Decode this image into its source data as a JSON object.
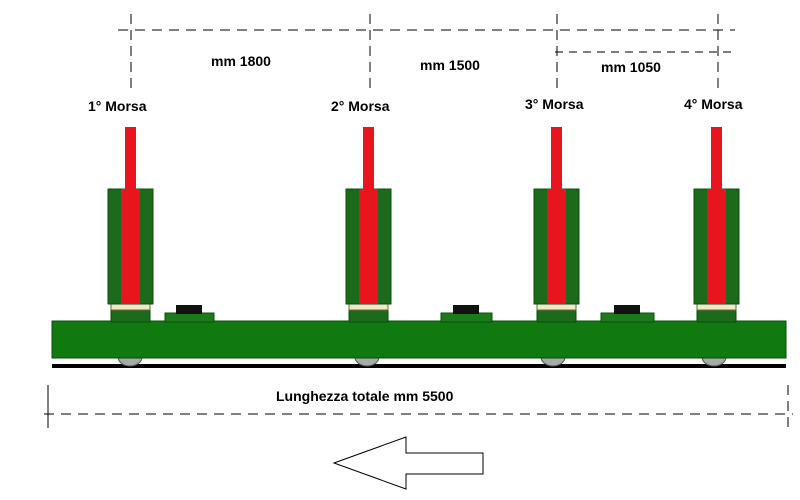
{
  "dimensions": [
    {
      "label": "mm 1800"
    },
    {
      "label": "mm 1500"
    },
    {
      "label": "mm 1050"
    }
  ],
  "vises": [
    {
      "label": "1° Morsa"
    },
    {
      "label": "2° Morsa"
    },
    {
      "label": "3° Morsa"
    },
    {
      "label": "4° Morsa"
    }
  ],
  "total_length": {
    "label": "Lunghezza totale mm 5500"
  },
  "colors": {
    "beam_green": "#107a10",
    "cylinder_green": "#1c6b1c",
    "piston_red": "#e8141e",
    "stop_black": "#111111",
    "wheel_gray": "#a9a9a9",
    "line_black": "#000000"
  },
  "direction_arrow": {
    "direction": "left",
    "icon": "left-arrow-outline-icon"
  }
}
